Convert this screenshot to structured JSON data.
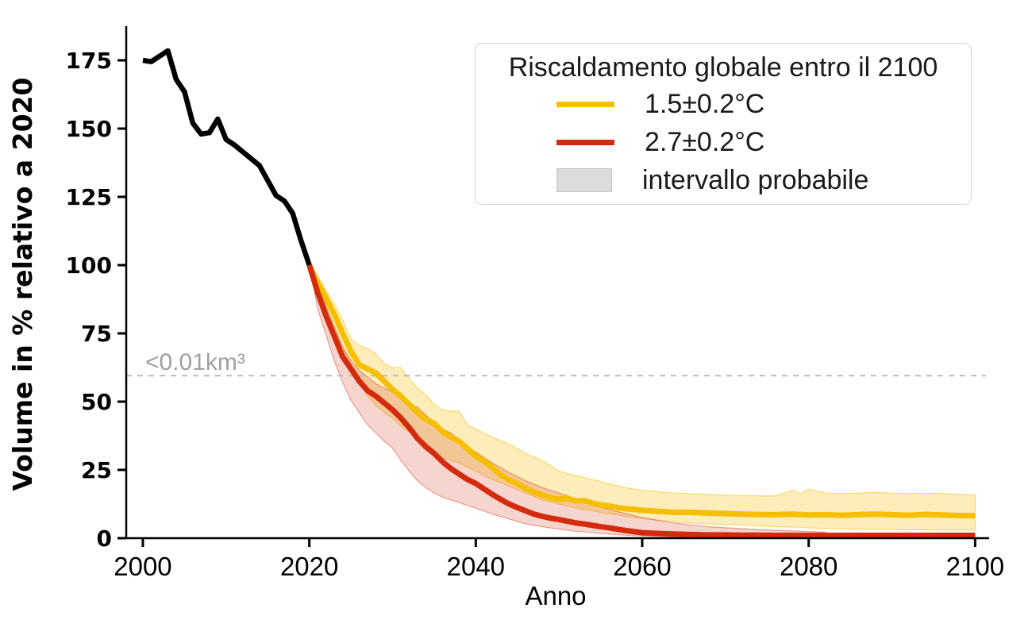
{
  "figure": {
    "background": "#ffffff"
  },
  "chart_data": {
    "type": "line",
    "title": "",
    "xlabel": "Anno",
    "ylabel": "Volume in % relativo a 2020",
    "xlim": [
      1998,
      2101.3
    ],
    "ylim": [
      0,
      187.5
    ],
    "x_ticks": [
      2000,
      2020,
      2040,
      2060,
      2080,
      2100
    ],
    "y_ticks": [
      0,
      25,
      50,
      75,
      100,
      125,
      150,
      175
    ],
    "grid": false,
    "axis_color": "#000000",
    "threshold_line": {
      "y": 59.5,
      "label": "<0.01km³",
      "style": "dashed",
      "color": "#b8b8b8",
      "label_color": "#a0a0a0"
    },
    "legend": {
      "title": "Riscaldamento globale entro il 2100",
      "position": "upper right",
      "entries": [
        {
          "label": "1.5±0.2°C",
          "type": "line",
          "color": "#f5be00"
        },
        {
          "label": "2.7±0.2°C",
          "type": "line",
          "color": "#d42b0e"
        },
        {
          "label": "intervallo probabile",
          "type": "patch",
          "color": "#dcdcdc",
          "border": "#c6c6c6"
        }
      ]
    },
    "series": [
      {
        "id": "proj-1-5c",
        "legend_label": "1.5±0.2°C",
        "color": "#f5be00",
        "width": 7,
        "band_opacity": 0.27,
        "x": [
          2020,
          2021,
          2022,
          2023,
          2024,
          2025,
          2026,
          2027,
          2028,
          2029,
          2030,
          2031,
          2032,
          2033,
          2034,
          2035,
          2036,
          2037,
          2038,
          2039,
          2040,
          2041,
          2042,
          2043,
          2044,
          2045,
          2046,
          2047,
          2048,
          2049,
          2050,
          2051,
          2052,
          2053,
          2054,
          2055,
          2056,
          2057,
          2058,
          2059,
          2060,
          2062,
          2064,
          2066,
          2068,
          2070,
          2072,
          2074,
          2076,
          2078,
          2080,
          2082,
          2084,
          2086,
          2088,
          2090,
          2092,
          2094,
          2096,
          2098,
          2100
        ],
        "y": [
          100,
          93.5,
          88,
          82,
          75,
          68.5,
          63.5,
          62,
          60.5,
          57.5,
          54.5,
          52,
          49,
          46,
          43.5,
          42,
          39,
          37,
          35.5,
          32.8,
          30,
          28.2,
          25.8,
          23.2,
          21.3,
          20,
          18.2,
          16.8,
          15.8,
          14.8,
          14.2,
          14.6,
          13.6,
          13.8,
          12.8,
          12.2,
          11.8,
          11.2,
          10.8,
          10.5,
          10.2,
          9.8,
          9.5,
          9.4,
          9.2,
          9,
          8.8,
          8.7,
          8.6,
          8.8,
          8.5,
          8.6,
          8.4,
          8.6,
          8.8,
          8.6,
          8.4,
          8.7,
          8.5,
          8.3,
          8.2
        ],
        "band": {
          "x": [
            2020,
            2021,
            2022,
            2023,
            2024,
            2025,
            2026,
            2027,
            2028,
            2029,
            2030,
            2031,
            2032,
            2033,
            2034,
            2035,
            2036,
            2037,
            2038,
            2039,
            2040,
            2042,
            2044,
            2046,
            2048,
            2050,
            2052,
            2054,
            2056,
            2058,
            2060,
            2062,
            2064,
            2066,
            2068,
            2070,
            2072,
            2074,
            2076,
            2078,
            2079,
            2080,
            2082,
            2084,
            2086,
            2088,
            2090,
            2092,
            2094,
            2096,
            2098,
            2100
          ],
          "upper": [
            100,
            96,
            91,
            86,
            80,
            73,
            70.5,
            69.5,
            67.5,
            64,
            62.5,
            62.5,
            58.5,
            55,
            52.5,
            49,
            47,
            46.5,
            46.5,
            41.5,
            40,
            37,
            34.5,
            31,
            28.5,
            24.5,
            23,
            21.5,
            20,
            18.5,
            17.5,
            17,
            16.5,
            16.3,
            16,
            15.8,
            15.6,
            15.5,
            15.5,
            17.5,
            16.3,
            18,
            16.5,
            16.3,
            16.5,
            16.8,
            16.5,
            16.3,
            16.5,
            16.3,
            16,
            15.8
          ],
          "lower": [
            100,
            91.5,
            84,
            77.5,
            70,
            63.5,
            57.5,
            52,
            48.5,
            46,
            44,
            41,
            39,
            37,
            33.5,
            31,
            29.5,
            28.5,
            27.5,
            26,
            24.5,
            21.5,
            19,
            16.5,
            14,
            12.5,
            11,
            10,
            9,
            8,
            7.2,
            6.5,
            6,
            5.5,
            5.2,
            5,
            4.8,
            4.5,
            4.2,
            4,
            4,
            3.8,
            3.5,
            3.4,
            3.3,
            3.2,
            3.2,
            3.1,
            3.1,
            3,
            3,
            3
          ]
        }
      },
      {
        "id": "proj-2-7c",
        "legend_label": "2.7±0.2°C",
        "color": "#d42b0e",
        "width": 7,
        "band_opacity": 0.2,
        "x": [
          2020,
          2021,
          2022,
          2023,
          2024,
          2025,
          2026,
          2027,
          2028,
          2029,
          2030,
          2031,
          2032,
          2033,
          2034,
          2035,
          2036,
          2037,
          2038,
          2039,
          2040,
          2041,
          2042,
          2043,
          2044,
          2045,
          2046,
          2047,
          2048,
          2049,
          2050,
          2051,
          2052,
          2053,
          2054,
          2055,
          2056,
          2057,
          2058,
          2059,
          2060,
          2062,
          2064,
          2066,
          2068,
          2070,
          2072,
          2074,
          2076,
          2078,
          2080,
          2082,
          2084,
          2086,
          2088,
          2090,
          2092,
          2094,
          2096,
          2098,
          2100
        ],
        "y": [
          100,
          90,
          81.5,
          74,
          66.5,
          62,
          57.5,
          54,
          52,
          49.5,
          47,
          44,
          40.5,
          36.5,
          33.5,
          31,
          28,
          25.5,
          23.5,
          21.5,
          20,
          18,
          16,
          14.2,
          12.5,
          11.2,
          10,
          8.8,
          8,
          7.3,
          6.8,
          6.2,
          5.6,
          5.2,
          4.7,
          4.2,
          3.8,
          3.3,
          2.8,
          2.4,
          2,
          1.7,
          1.5,
          1.3,
          1.2,
          1.2,
          1.1,
          1.1,
          1,
          1,
          1,
          1,
          1,
          1,
          1,
          1,
          1,
          1,
          1,
          1,
          1
        ],
        "band": {
          "x": [
            2020,
            2021,
            2022,
            2023,
            2024,
            2025,
            2026,
            2027,
            2028,
            2029,
            2030,
            2031,
            2032,
            2033,
            2034,
            2035,
            2036,
            2037,
            2038,
            2039,
            2040,
            2042,
            2044,
            2046,
            2048,
            2050,
            2052,
            2054,
            2056,
            2058,
            2060,
            2062,
            2064,
            2066,
            2068,
            2070,
            2075,
            2082
          ],
          "upper": [
            100,
            93,
            85,
            77.5,
            70,
            65,
            61.5,
            59,
            56.5,
            55,
            53.5,
            51,
            48.5,
            48,
            45,
            42.5,
            40,
            38.5,
            36,
            33.5,
            31.5,
            27.5,
            24,
            21,
            18.5,
            16.5,
            14.5,
            12.5,
            10.5,
            9,
            7.5,
            6.5,
            5.5,
            4.8,
            4.2,
            3.8,
            3,
            2.2
          ],
          "lower": [
            100,
            84,
            74.5,
            65,
            57,
            50.5,
            46,
            41.5,
            38.5,
            35.5,
            33,
            28.5,
            24.5,
            21,
            18.5,
            16.5,
            15,
            14,
            13,
            12,
            11,
            8.8,
            7,
            5.2,
            4.2,
            3.3,
            2.5,
            2,
            1.5,
            1.1,
            0.8,
            0.6,
            0.4,
            0.3,
            0.2,
            0.2,
            0.1,
            0.1
          ]
        }
      },
      {
        "id": "historical",
        "color": "#000000",
        "width": 6.5,
        "x": [
          2000,
          2001,
          2002,
          2003,
          2004,
          2005,
          2006,
          2007,
          2008,
          2009,
          2010,
          2011,
          2012,
          2013,
          2014,
          2015,
          2016,
          2017,
          2018,
          2019,
          2020
        ],
        "y": [
          175,
          174.5,
          176.5,
          178.5,
          168,
          163.5,
          152,
          148,
          148.5,
          153.5,
          146,
          144,
          141.5,
          139,
          136.5,
          131,
          125.5,
          123.5,
          119,
          109,
          100
        ]
      }
    ]
  }
}
